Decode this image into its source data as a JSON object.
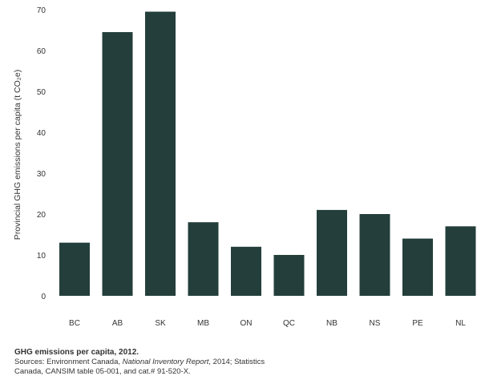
{
  "chart_data": {
    "type": "bar",
    "categories": [
      "BC",
      "AB",
      "SK",
      "MB",
      "ON",
      "QC",
      "NB",
      "NS",
      "PE",
      "NL"
    ],
    "values": [
      13,
      64.5,
      69.5,
      18,
      12,
      10,
      21,
      20,
      14,
      17
    ],
    "title": "",
    "xlabel": "",
    "ylabel": "Provincial GHG emissions per capita  (t CO₂e)",
    "ylim": [
      0,
      70
    ],
    "yticks": [
      0,
      10,
      20,
      30,
      40,
      50,
      60,
      70
    ],
    "grid": false,
    "legend": "none",
    "bar_color": "#243f3b"
  },
  "caption": {
    "title": "GHG emissions per capita, 2012.",
    "sources_prefix": "Sources: Environment Canada, ",
    "sources_italic": "National Inventory Report",
    "sources_mid": ", 2014; Statistics",
    "sources_line2": "Canada, CANSIM table 05-001, and cat.# 91-520-X."
  }
}
